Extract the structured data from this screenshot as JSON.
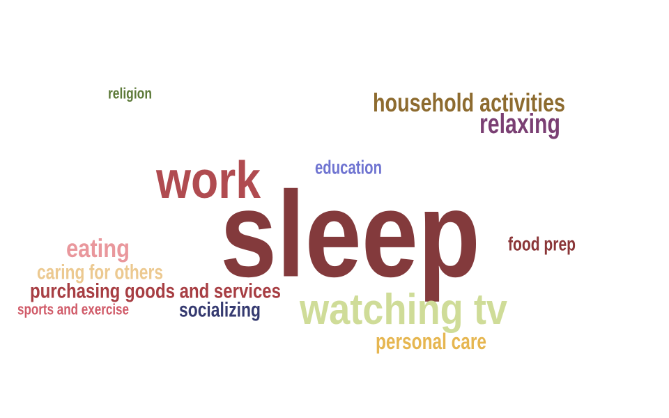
{
  "chart_data": {
    "type": "wordcloud",
    "words": [
      {
        "text": "sleep",
        "color": "#833a3c"
      },
      {
        "text": "work",
        "color": "#b04b50"
      },
      {
        "text": "watching tv",
        "color": "#cfdc98"
      },
      {
        "text": "household activities",
        "color": "#8d6b2f"
      },
      {
        "text": "relaxing",
        "color": "#7a3f73"
      },
      {
        "text": "eating",
        "color": "#e9979c"
      },
      {
        "text": "purchasing goods and services",
        "color": "#a73e43"
      },
      {
        "text": "caring for others",
        "color": "#ecc990"
      },
      {
        "text": "personal care",
        "color": "#e6b650"
      },
      {
        "text": "socializing",
        "color": "#353a70"
      },
      {
        "text": "food prep",
        "color": "#8a3537"
      },
      {
        "text": "education",
        "color": "#6f74d1"
      },
      {
        "text": "sports and exercise",
        "color": "#d05a68"
      },
      {
        "text": "religion",
        "color": "#5d7a39"
      }
    ]
  }
}
